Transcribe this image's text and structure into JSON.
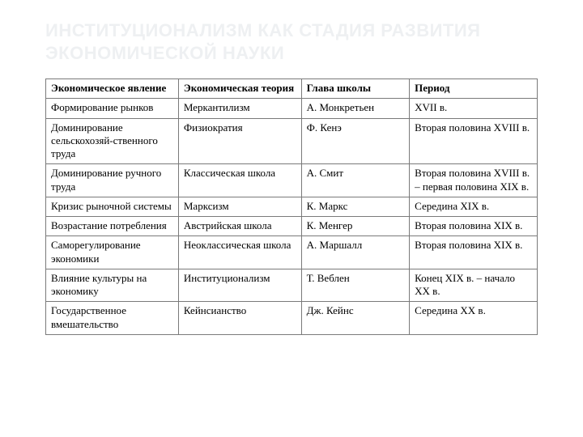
{
  "title": "ИНСТИТУЦИОНАЛИЗМ КАК СТАДИЯ РАЗВИТИЯ ЭКОНОМИЧЕСКОЙ НАУКИ",
  "table": {
    "type": "table",
    "border_color": "#7a7a7a",
    "background_color": "#ffffff",
    "text_color": "#000000",
    "header_font_weight": "bold",
    "font_family": "Times New Roman",
    "font_size_pt": 10,
    "column_widths_pct": [
      27,
      25,
      22,
      26
    ],
    "columns": [
      "Экономическое явление",
      "Экономическая теория",
      "Глава школы",
      "Период"
    ],
    "rows": [
      [
        "Формирование рынков",
        "Меркантилизм",
        "А. Монкретьен",
        "XVII в."
      ],
      [
        "Доминирование сельскохозяй-ственного труда",
        "Физиократия",
        "Ф. Кенэ",
        "Вторая половина XVIII в."
      ],
      [
        "Доминирование ручного труда",
        "Классическая школа",
        "А. Смит",
        "Вторая половина XVIII в. – первая половина XIX в."
      ],
      [
        "Кризис рыночной системы",
        "Марксизм",
        "К. Маркс",
        "Середина XIX в."
      ],
      [
        "Возрастание потребления",
        "Австрийская школа",
        "К. Менгер",
        "Вторая половина XIX в."
      ],
      [
        "Саморегулирование экономики",
        "Неоклассическая школа",
        "А. Маршалл",
        "Вторая половина XIX в."
      ],
      [
        "Влияние культуры на экономику",
        "Институционализм",
        "Т. Веблен",
        "Конец XIX в. – начало XX в."
      ],
      [
        "Государственное вмешательство",
        "Кейнсианство",
        "Дж. Кейнс",
        "Середина XX в."
      ]
    ]
  },
  "title_style": {
    "color": "#eef0f2",
    "font_family": "Arial",
    "font_size_pt": 17,
    "font_weight": "bold"
  }
}
